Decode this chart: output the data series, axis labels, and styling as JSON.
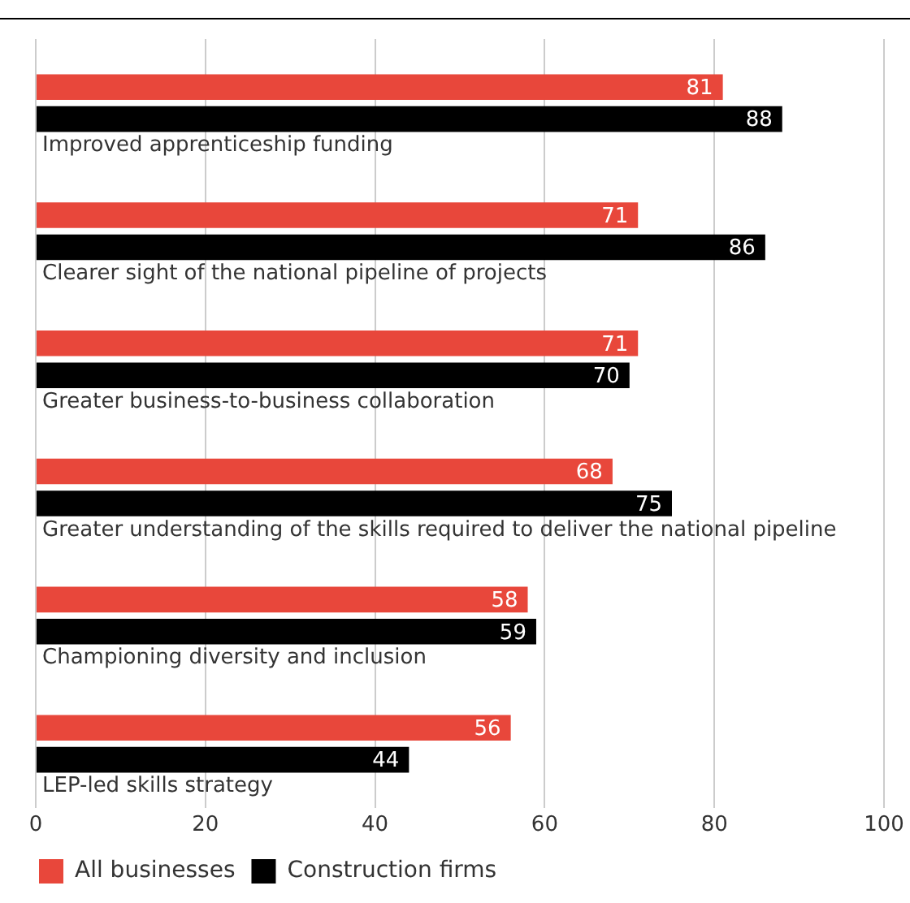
{
  "chart_data": {
    "type": "bar",
    "orientation": "horizontal",
    "categories": [
      "Improved apprenticeship funding",
      "Clearer sight of the national pipeline of projects",
      "Greater business-to-business collaboration",
      "Greater understanding of the skills required to deliver the national pipeline",
      "Championing diversity and inclusion",
      "LEP-led skills strategy"
    ],
    "series": [
      {
        "name": "All businesses",
        "color": "#e8473b",
        "values": [
          81,
          71,
          71,
          68,
          58,
          56
        ]
      },
      {
        "name": "Construction firms",
        "color": "#000000",
        "values": [
          88,
          86,
          70,
          75,
          59,
          44
        ]
      }
    ],
    "xlim": [
      0,
      100
    ],
    "xticks": [
      0,
      20,
      40,
      60,
      80,
      100
    ],
    "grid": "x",
    "legend": "bottom left",
    "data_labels": true
  }
}
